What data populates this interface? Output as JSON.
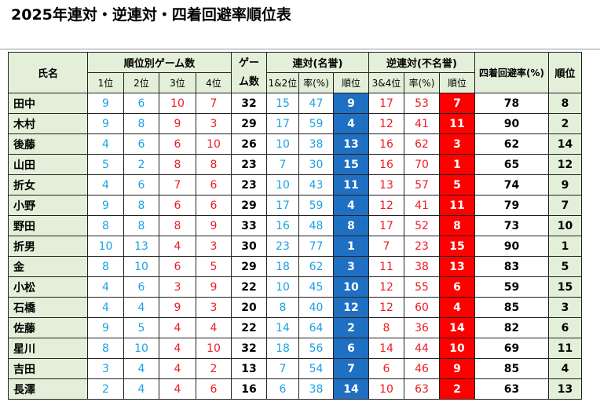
{
  "title": "2025年連対・逆連対・四着回避率順位表",
  "header": {
    "name": "氏名",
    "by_rank_group": "順位別ゲーム数",
    "r1": "1位",
    "r2": "2位",
    "r3": "3位",
    "r4": "4位",
    "games_top": "ゲー",
    "games_bottom": "ム数",
    "rentai_group": "連対(名誉)",
    "rentai_count": "1&2位",
    "rentai_rate": "率(%)",
    "rentai_rank": "順位",
    "gyaku_group": "逆連対(不名誉)",
    "gyaku_count": "3&4位",
    "gyaku_rate": "率(%)",
    "gyaku_rank": "順位",
    "avoid_rate": "四着回避率(%)",
    "final_rank": "順位"
  },
  "rows": [
    {
      "name": "田中",
      "r1": "9",
      "r2": "6",
      "r3": "10",
      "r4": "7",
      "games": "32",
      "c12": "15",
      "rate12": "47",
      "rank12": "9",
      "c34": "17",
      "rate34": "53",
      "rank34": "7",
      "avoid": "78",
      "final": "8"
    },
    {
      "name": "木村",
      "r1": "9",
      "r2": "8",
      "r3": "9",
      "r4": "3",
      "games": "29",
      "c12": "17",
      "rate12": "59",
      "rank12": "4",
      "c34": "12",
      "rate34": "41",
      "rank34": "11",
      "avoid": "90",
      "final": "2"
    },
    {
      "name": "後藤",
      "r1": "4",
      "r2": "6",
      "r3": "6",
      "r4": "10",
      "games": "26",
      "c12": "10",
      "rate12": "38",
      "rank12": "13",
      "c34": "16",
      "rate34": "62",
      "rank34": "3",
      "avoid": "62",
      "final": "14"
    },
    {
      "name": "山田",
      "r1": "5",
      "r2": "2",
      "r3": "8",
      "r4": "8",
      "games": "23",
      "c12": "7",
      "rate12": "30",
      "rank12": "15",
      "c34": "16",
      "rate34": "70",
      "rank34": "1",
      "avoid": "65",
      "final": "12"
    },
    {
      "name": "折女",
      "r1": "4",
      "r2": "6",
      "r3": "7",
      "r4": "6",
      "games": "23",
      "c12": "10",
      "rate12": "43",
      "rank12": "11",
      "c34": "13",
      "rate34": "57",
      "rank34": "5",
      "avoid": "74",
      "final": "9"
    },
    {
      "name": "小野",
      "r1": "9",
      "r2": "8",
      "r3": "6",
      "r4": "6",
      "games": "29",
      "c12": "17",
      "rate12": "59",
      "rank12": "4",
      "c34": "12",
      "rate34": "41",
      "rank34": "11",
      "avoid": "79",
      "final": "7"
    },
    {
      "name": "野田",
      "r1": "8",
      "r2": "8",
      "r3": "8",
      "r4": "9",
      "games": "33",
      "c12": "16",
      "rate12": "48",
      "rank12": "8",
      "c34": "17",
      "rate34": "52",
      "rank34": "8",
      "avoid": "73",
      "final": "10"
    },
    {
      "name": "折男",
      "r1": "10",
      "r2": "13",
      "r3": "4",
      "r4": "3",
      "games": "30",
      "c12": "23",
      "rate12": "77",
      "rank12": "1",
      "c34": "7",
      "rate34": "23",
      "rank34": "15",
      "avoid": "90",
      "final": "1"
    },
    {
      "name": "金",
      "r1": "8",
      "r2": "10",
      "r3": "6",
      "r4": "5",
      "games": "29",
      "c12": "18",
      "rate12": "62",
      "rank12": "3",
      "c34": "11",
      "rate34": "38",
      "rank34": "13",
      "avoid": "83",
      "final": "5"
    },
    {
      "name": "小松",
      "r1": "4",
      "r2": "6",
      "r3": "3",
      "r4": "9",
      "games": "22",
      "c12": "10",
      "rate12": "45",
      "rank12": "10",
      "c34": "12",
      "rate34": "55",
      "rank34": "6",
      "avoid": "59",
      "final": "15"
    },
    {
      "name": "石橋",
      "r1": "4",
      "r2": "4",
      "r3": "9",
      "r4": "3",
      "games": "20",
      "c12": "8",
      "rate12": "40",
      "rank12": "12",
      "c34": "12",
      "rate34": "60",
      "rank34": "4",
      "avoid": "85",
      "final": "3"
    },
    {
      "name": "佐藤",
      "r1": "9",
      "r2": "5",
      "r3": "4",
      "r4": "4",
      "games": "22",
      "c12": "14",
      "rate12": "64",
      "rank12": "2",
      "c34": "8",
      "rate34": "36",
      "rank34": "14",
      "avoid": "82",
      "final": "6"
    },
    {
      "name": "星川",
      "r1": "8",
      "r2": "10",
      "r3": "4",
      "r4": "10",
      "games": "32",
      "c12": "18",
      "rate12": "56",
      "rank12": "6",
      "c34": "14",
      "rate34": "44",
      "rank34": "10",
      "avoid": "69",
      "final": "11"
    },
    {
      "name": "吉田",
      "r1": "3",
      "r2": "4",
      "r3": "4",
      "r4": "2",
      "games": "13",
      "c12": "7",
      "rate12": "54",
      "rank12": "7",
      "c34": "6",
      "rate34": "46",
      "rank34": "9",
      "avoid": "85",
      "final": "4"
    },
    {
      "name": "長澤",
      "r1": "2",
      "r2": "4",
      "r3": "4",
      "r4": "6",
      "games": "16",
      "c12": "6",
      "rate12": "38",
      "rank12": "14",
      "c34": "10",
      "rate34": "63",
      "rank34": "2",
      "avoid": "63",
      "final": "13"
    }
  ],
  "colors": {
    "header_bg": "#e3efd9",
    "blue_text": "#1ba2e0",
    "red_text": "#ee1c24",
    "rank12_bg": "#1f6fc2",
    "rank34_bg": "#ff0000"
  }
}
